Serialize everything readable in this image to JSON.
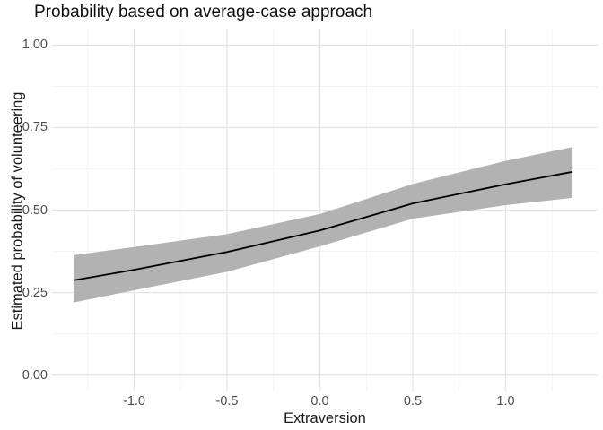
{
  "chart_data": {
    "type": "line",
    "title": "Probability based on average-case approach",
    "xlabel": "Extraversion",
    "ylabel": "Estimated probability of volunteering",
    "x_domain": [
      -1.442,
      1.495
    ],
    "y_domain": [
      -0.05,
      1.05
    ],
    "x_ticks": [
      {
        "value": -1.0,
        "label": "-1.0"
      },
      {
        "value": -0.5,
        "label": "-0.5"
      },
      {
        "value": 0.0,
        "label": "0.0"
      },
      {
        "value": 0.5,
        "label": "0.5"
      },
      {
        "value": 1.0,
        "label": "1.0"
      }
    ],
    "x_minor_ticks": [
      -1.25,
      -0.75,
      -0.25,
      0.25,
      0.75,
      1.25
    ],
    "y_ticks": [
      {
        "value": 0.0,
        "label": "0.00"
      },
      {
        "value": 0.25,
        "label": "0.25"
      },
      {
        "value": 0.5,
        "label": "0.50"
      },
      {
        "value": 0.75,
        "label": "0.75"
      },
      {
        "value": 1.0,
        "label": "1.00"
      }
    ],
    "y_minor_ticks": [
      0.125,
      0.375,
      0.625,
      0.875
    ],
    "grid": true,
    "legend": false,
    "series": [
      {
        "name": "fit",
        "x": [
          -1.326,
          -1.0,
          -0.5,
          0.0,
          0.5,
          1.0,
          1.36
        ],
        "y": [
          0.287,
          0.319,
          0.373,
          0.438,
          0.52,
          0.578,
          0.616
        ]
      },
      {
        "name": "ci_lower",
        "x": [
          -1.326,
          -1.0,
          -0.5,
          0.0,
          0.5,
          1.0,
          1.36
        ],
        "y": [
          0.22,
          0.257,
          0.313,
          0.39,
          0.474,
          0.515,
          0.537
        ]
      },
      {
        "name": "ci_upper",
        "x": [
          -1.326,
          -1.0,
          -0.5,
          0.0,
          0.5,
          1.0,
          1.36
        ],
        "y": [
          0.363,
          0.388,
          0.427,
          0.488,
          0.579,
          0.649,
          0.691
        ]
      }
    ],
    "colors": {
      "fit_line": "#000000",
      "ci_ribbon": "#b2b2b2",
      "grid_major": "#e5e5e5",
      "grid_minor": "#f0f0f0",
      "tick_label": "#4d4d4d",
      "axis_title": "#1a1a1a",
      "plot_title": "#111111",
      "background": "#ffffff"
    }
  }
}
